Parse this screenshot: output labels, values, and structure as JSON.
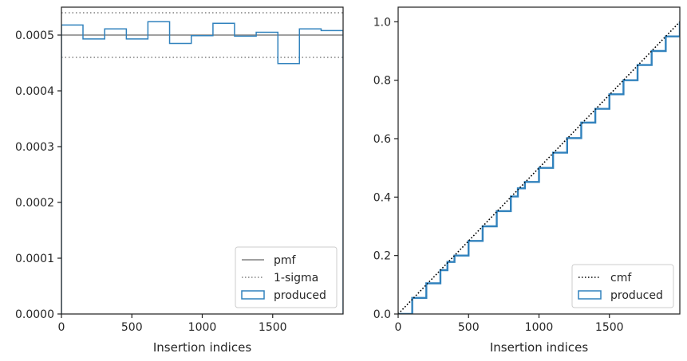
{
  "chart_data": [
    {
      "type": "histogram",
      "xlabel": "Insertion indices",
      "ylabel": "",
      "xlim": [
        0,
        2000
      ],
      "ylim": [
        0,
        0.00055
      ],
      "xticks": [
        0,
        500,
        1000,
        1500
      ],
      "yticks": [
        0.0,
        0.0001,
        0.0002,
        0.0003,
        0.0004,
        0.0005
      ],
      "ytick_labels": [
        "0.0000",
        "0.0001",
        "0.0002",
        "0.0003",
        "0.0004",
        "0.0005"
      ],
      "grid": false,
      "legend_position": "bottom-right",
      "reference_lines": [
        {
          "name": "pmf",
          "style": "solid",
          "color": "#808080",
          "y": 0.0005
        },
        {
          "name": "1-sigma",
          "style": "dotted",
          "color": "#808080",
          "y": 0.00054
        },
        {
          "name": "1-sigma",
          "style": "dotted",
          "color": "#808080",
          "y": 0.00046
        }
      ],
      "series": [
        {
          "name": "produced",
          "color": "#3182bd",
          "bin_edges": [
            0,
            153,
            307,
            461,
            614,
            768,
            922,
            1076,
            1229,
            1383,
            1537,
            1690,
            1844,
            2000
          ],
          "values": [
            0.000518,
            0.000493,
            0.000511,
            0.000493,
            0.000524,
            0.000485,
            0.000499,
            0.000521,
            0.000498,
            0.000505,
            0.000449,
            0.000511,
            0.000508
          ]
        }
      ],
      "legend": [
        {
          "label": "pmf",
          "kind": "solid-line"
        },
        {
          "label": "1-sigma",
          "kind": "dotted-line"
        },
        {
          "label": "produced",
          "kind": "box"
        }
      ]
    },
    {
      "type": "line",
      "xlabel": "Insertion indices",
      "ylabel": "",
      "xlim": [
        0,
        2000
      ],
      "ylim": [
        0,
        1.05
      ],
      "xticks": [
        0,
        500,
        1000,
        1500
      ],
      "yticks": [
        0.0,
        0.2,
        0.4,
        0.6,
        0.8,
        1.0
      ],
      "ytick_labels": [
        "0.0",
        "0.2",
        "0.4",
        "0.6",
        "0.8",
        "1.0"
      ],
      "grid": false,
      "legend_position": "bottom-right",
      "series": [
        {
          "name": "cmf",
          "style": "dotted",
          "color": "#000000",
          "x": [
            0,
            2000
          ],
          "y": [
            0.0,
            1.0
          ]
        },
        {
          "name": "produced",
          "style": "step",
          "color": "#3182bd",
          "x": [
            0,
            100,
            200,
            300,
            350,
            400,
            500,
            600,
            700,
            800,
            850,
            900,
            1000,
            1100,
            1200,
            1300,
            1400,
            1500,
            1600,
            1700,
            1800,
            1900,
            2000
          ],
          "y": [
            0.0,
            0.055,
            0.105,
            0.15,
            0.178,
            0.2,
            0.25,
            0.3,
            0.352,
            0.402,
            0.43,
            0.452,
            0.5,
            0.552,
            0.602,
            0.655,
            0.702,
            0.752,
            0.8,
            0.852,
            0.9,
            0.95,
            1.0
          ]
        }
      ],
      "legend": [
        {
          "label": "cmf",
          "kind": "dotted-line"
        },
        {
          "label": "produced",
          "kind": "box"
        }
      ]
    }
  ]
}
